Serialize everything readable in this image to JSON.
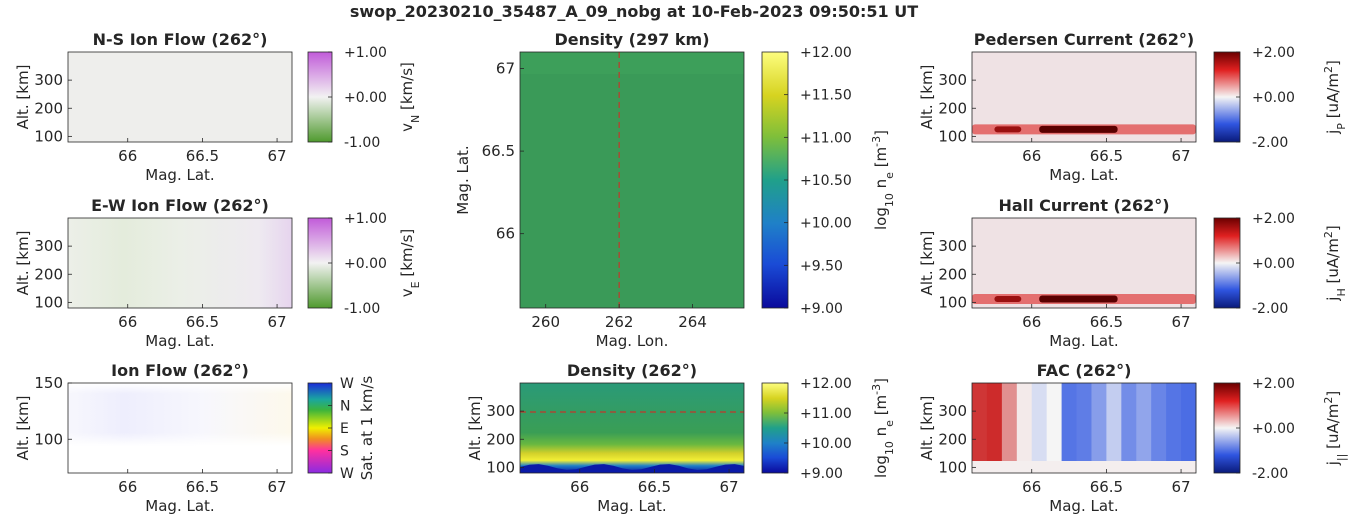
{
  "figure": {
    "title": "swop_20230210_35487_A_09_nobg at 10-Feb-2023 09:50:51 UT"
  },
  "chart_data": [
    {
      "id": "ns_flow",
      "type": "heatmap",
      "title": "N-S Ion Flow (262°)",
      "xlabel": "Mag. Lat.",
      "ylabel": "Alt. [km]",
      "xlim": [
        65.6,
        67.1
      ],
      "ylim": [
        80,
        400
      ],
      "xticks": [
        "66",
        "66.5",
        "67"
      ],
      "yticks": [
        "100",
        "200",
        "300"
      ],
      "colorbar": {
        "label": "v_N [km/s]",
        "ticks": [
          "+1.00",
          "+0.00",
          "-1.00"
        ],
        "colormap": "purple-white-green",
        "range": [
          -1,
          1
        ]
      },
      "description_values": {
        "field": "near zero everywhere",
        "max_abs": 0.1
      }
    },
    {
      "id": "ew_flow",
      "type": "heatmap",
      "title": "E-W Ion Flow (262°)",
      "xlabel": "Mag. Lat.",
      "ylabel": "Alt. [km]",
      "xlim": [
        65.6,
        67.1
      ],
      "ylim": [
        80,
        400
      ],
      "xticks": [
        "66",
        "66.5",
        "67"
      ],
      "yticks": [
        "100",
        "200",
        "300"
      ],
      "colorbar": {
        "label": "v_E [km/s]",
        "ticks": [
          "+1.00",
          "+0.00",
          "-1.00"
        ],
        "colormap": "purple-white-green",
        "range": [
          -1,
          1
        ]
      }
    },
    {
      "id": "ion_flow",
      "type": "heatmap",
      "title": "Ion Flow (262°)",
      "xlabel": "Mag. Lat.",
      "ylabel": "Alt. [km]",
      "xlim": [
        65.6,
        67.1
      ],
      "ylim": [
        70,
        150
      ],
      "xticks": [
        "66",
        "66.5",
        "67"
      ],
      "yticks": [
        "100",
        "150"
      ],
      "colorbar": {
        "label": "Sat. at 1 km/s",
        "ticks": [
          "W",
          "N",
          "E",
          "S",
          "W"
        ],
        "colormap": "direction-wheel"
      }
    },
    {
      "id": "density_map",
      "type": "heatmap",
      "title": "Density (297 km)",
      "xlabel": "Mag. Lon.",
      "ylabel": "Mag. Lat.",
      "xlim": [
        259.3,
        265.4
      ],
      "ylim": [
        65.55,
        67.1
      ],
      "xticks": [
        "260",
        "262",
        "264"
      ],
      "yticks": [
        "66",
        "66.5",
        "67"
      ],
      "marker_line": {
        "axis": "x",
        "value": 262,
        "style": "dashed",
        "color": "#c0392b"
      },
      "colorbar": {
        "label": "log_10 n_e [m^-3]",
        "ticks": [
          "+12.00",
          "+11.50",
          "+11.00",
          "+10.50",
          "+10.00",
          "+9.50",
          "+9.00"
        ],
        "colormap": "parula",
        "range": [
          9,
          12
        ]
      },
      "value_estimate": 10.6
    },
    {
      "id": "density_profile",
      "type": "heatmap",
      "title": "Density (262°)",
      "xlabel": "Mag. Lat.",
      "ylabel": "Alt. [km]",
      "xlim": [
        65.6,
        67.1
      ],
      "ylim": [
        80,
        400
      ],
      "xticks": [
        "66",
        "66.5",
        "67"
      ],
      "yticks": [
        "100",
        "200",
        "300"
      ],
      "marker_line": {
        "axis": "y",
        "value": 297,
        "style": "dashed",
        "color": "#c0392b"
      },
      "colorbar": {
        "label": "log_10 n_e [m^-3]",
        "ticks": [
          "+12.00",
          "+11.00",
          "+10.00",
          "+9.00"
        ],
        "colormap": "parula",
        "range": [
          9,
          12
        ]
      }
    },
    {
      "id": "pedersen",
      "type": "heatmap",
      "title": "Pedersen Current (262°)",
      "xlabel": "Mag. Lat.",
      "ylabel": "Alt. [km]",
      "xlim": [
        65.6,
        67.1
      ],
      "ylim": [
        80,
        400
      ],
      "xticks": [
        "66",
        "66.5",
        "67"
      ],
      "yticks": [
        "100",
        "200",
        "300"
      ],
      "colorbar": {
        "label": "j_P [uA/m^2]",
        "ticks": [
          "+2.00",
          "+0.00",
          "-2.00"
        ],
        "colormap": "blue-white-red",
        "range": [
          -2,
          2
        ]
      },
      "layer_altitude_km": 125
    },
    {
      "id": "hall",
      "type": "heatmap",
      "title": "Hall Current (262°)",
      "xlabel": "Mag. Lat.",
      "ylabel": "Alt. [km]",
      "xlim": [
        65.6,
        67.1
      ],
      "ylim": [
        80,
        400
      ],
      "xticks": [
        "66",
        "66.5",
        "67"
      ],
      "yticks": [
        "100",
        "200",
        "300"
      ],
      "colorbar": {
        "label": "j_H [uA/m^2]",
        "ticks": [
          "+2.00",
          "+0.00",
          "-2.00"
        ],
        "colormap": "blue-white-red",
        "range": [
          -2,
          2
        ]
      },
      "layer_altitude_km": 112
    },
    {
      "id": "fac",
      "type": "heatmap",
      "title": "FAC (262°)",
      "xlabel": "Mag. Lat.",
      "ylabel": "Alt. [km]",
      "xlim": [
        65.6,
        67.1
      ],
      "ylim": [
        80,
        400
      ],
      "xticks": [
        "66",
        "66.5",
        "67"
      ],
      "yticks": [
        "100",
        "200",
        "300"
      ],
      "colorbar": {
        "label": "j_|| [uA/m^2]",
        "ticks": [
          "+2.00",
          "+0.00",
          "-2.00"
        ],
        "colormap": "blue-white-red",
        "range": [
          -2,
          2
        ]
      },
      "columns": [
        {
          "lat": 65.65,
          "value": 1.7
        },
        {
          "lat": 65.75,
          "value": 1.8
        },
        {
          "lat": 65.85,
          "value": 0.9
        },
        {
          "lat": 65.95,
          "value": 0.1
        },
        {
          "lat": 66.05,
          "value": -0.3
        },
        {
          "lat": 66.15,
          "value": 0.0
        },
        {
          "lat": 66.25,
          "value": -1.6
        },
        {
          "lat": 66.35,
          "value": -1.5
        },
        {
          "lat": 66.45,
          "value": -1.1
        },
        {
          "lat": 66.55,
          "value": -0.5
        },
        {
          "lat": 66.65,
          "value": -1.3
        },
        {
          "lat": 66.75,
          "value": -1.0
        },
        {
          "lat": 66.85,
          "value": -1.4
        },
        {
          "lat": 66.95,
          "value": -1.6
        },
        {
          "lat": 67.05,
          "value": -1.7
        }
      ]
    }
  ]
}
